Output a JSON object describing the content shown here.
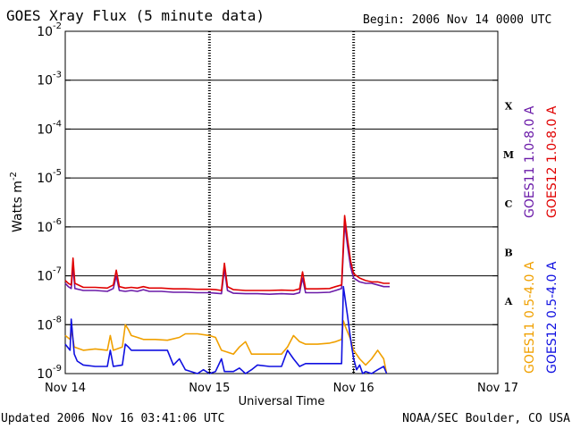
{
  "chart_data": {
    "type": "line",
    "title": "GOES Xray Flux (5 minute data)",
    "begin_label": "Begin:  2006 Nov 14 0000 UTC",
    "xlabel": "Universal Time",
    "ylabel": "Watts m",
    "ylabel_exp": "-2",
    "y_scale": "log",
    "ylim": [
      1e-09,
      0.01
    ],
    "xlim": [
      0,
      72
    ],
    "x_unit": "hours since 2006 Nov 14 00:00 UTC",
    "x_ticks": [
      {
        "x": 0,
        "label": "Nov 14"
      },
      {
        "x": 24,
        "label": "Nov 15"
      },
      {
        "x": 48,
        "label": "Nov 16"
      },
      {
        "x": 72,
        "label": "Nov 17"
      }
    ],
    "y_ticks": [
      {
        "exp": -9,
        "label": "10",
        "sup": "-9"
      },
      {
        "exp": -8,
        "label": "10",
        "sup": "-8"
      },
      {
        "exp": -7,
        "label": "10",
        "sup": "-7"
      },
      {
        "exp": -6,
        "label": "10",
        "sup": "-6"
      },
      {
        "exp": -5,
        "label": "10",
        "sup": "-5"
      },
      {
        "exp": -4,
        "label": "10",
        "sup": "-4"
      },
      {
        "exp": -3,
        "label": "10",
        "sup": "-3"
      },
      {
        "exp": -2,
        "label": "10",
        "sup": "-2"
      }
    ],
    "flare_classes": [
      {
        "label": "A",
        "y": 3e-08
      },
      {
        "label": "B",
        "y": 3e-07
      },
      {
        "label": "C",
        "y": 3e-06
      },
      {
        "label": "M",
        "y": 3e-05
      },
      {
        "label": "X",
        "y": 0.0003
      }
    ],
    "grid": true,
    "series": [
      {
        "name": "GOES11 1.0-8.0 A",
        "color": "#6a1aa8",
        "points": [
          [
            0,
            7e-08
          ],
          [
            0.5,
            6e-08
          ],
          [
            1,
            5.5e-08
          ],
          [
            1.3,
            1.6e-07
          ],
          [
            1.6,
            5.5e-08
          ],
          [
            3,
            5e-08
          ],
          [
            5,
            5e-08
          ],
          [
            7,
            4.8e-08
          ],
          [
            8,
            5.5e-08
          ],
          [
            8.5,
            1e-07
          ],
          [
            9,
            5e-08
          ],
          [
            10,
            4.8e-08
          ],
          [
            11,
            5e-08
          ],
          [
            12,
            4.8e-08
          ],
          [
            13,
            5.2e-08
          ],
          [
            14,
            4.8e-08
          ],
          [
            16,
            4.8e-08
          ],
          [
            18,
            4.6e-08
          ],
          [
            20,
            4.6e-08
          ],
          [
            22,
            4.5e-08
          ],
          [
            24,
            4.5e-08
          ],
          [
            25,
            4.4e-08
          ],
          [
            26,
            4.3e-08
          ],
          [
            26.5,
            1.4e-07
          ],
          [
            27,
            5e-08
          ],
          [
            28,
            4.4e-08
          ],
          [
            30,
            4.3e-08
          ],
          [
            32,
            4.3e-08
          ],
          [
            34,
            4.2e-08
          ],
          [
            36,
            4.3e-08
          ],
          [
            38,
            4.2e-08
          ],
          [
            39,
            4.5e-08
          ],
          [
            39.5,
            9e-08
          ],
          [
            40,
            4.5e-08
          ],
          [
            42,
            4.5e-08
          ],
          [
            44,
            4.6e-08
          ],
          [
            45,
            5e-08
          ],
          [
            46,
            5.5e-08
          ],
          [
            46.5,
            1.2e-06
          ],
          [
            47,
            4e-07
          ],
          [
            47.5,
            1.5e-07
          ],
          [
            48,
            9e-08
          ],
          [
            49,
            7.5e-08
          ],
          [
            50,
            7e-08
          ],
          [
            51,
            7e-08
          ],
          [
            52,
            6.5e-08
          ],
          [
            53,
            6e-08
          ],
          [
            54,
            6e-08
          ]
        ]
      },
      {
        "name": "GOES12 1.0-8.0 A",
        "color": "#e00000",
        "points": [
          [
            0,
            8e-08
          ],
          [
            0.5,
            7e-08
          ],
          [
            1,
            6.5e-08
          ],
          [
            1.3,
            2.3e-07
          ],
          [
            1.6,
            7e-08
          ],
          [
            3,
            5.8e-08
          ],
          [
            5,
            5.8e-08
          ],
          [
            7,
            5.6e-08
          ],
          [
            8,
            6.5e-08
          ],
          [
            8.5,
            1.3e-07
          ],
          [
            9,
            6e-08
          ],
          [
            10,
            5.6e-08
          ],
          [
            11,
            5.8e-08
          ],
          [
            12,
            5.6e-08
          ],
          [
            13,
            6e-08
          ],
          [
            14,
            5.6e-08
          ],
          [
            16,
            5.6e-08
          ],
          [
            18,
            5.4e-08
          ],
          [
            20,
            5.4e-08
          ],
          [
            22,
            5.3e-08
          ],
          [
            24,
            5.3e-08
          ],
          [
            25,
            5.2e-08
          ],
          [
            26,
            5e-08
          ],
          [
            26.5,
            1.8e-07
          ],
          [
            27,
            6e-08
          ],
          [
            28,
            5.2e-08
          ],
          [
            30,
            5e-08
          ],
          [
            32,
            5e-08
          ],
          [
            34,
            5e-08
          ],
          [
            36,
            5.1e-08
          ],
          [
            38,
            5e-08
          ],
          [
            39,
            5.4e-08
          ],
          [
            39.5,
            1.2e-07
          ],
          [
            40,
            5.4e-08
          ],
          [
            42,
            5.4e-08
          ],
          [
            44,
            5.5e-08
          ],
          [
            45,
            6e-08
          ],
          [
            46,
            6.5e-08
          ],
          [
            46.5,
            1.7e-06
          ],
          [
            47,
            5.5e-07
          ],
          [
            47.5,
            2e-07
          ],
          [
            48,
            1.1e-07
          ],
          [
            49,
            9e-08
          ],
          [
            50,
            8e-08
          ],
          [
            51,
            7.5e-08
          ],
          [
            52,
            7.5e-08
          ],
          [
            53,
            7e-08
          ],
          [
            54,
            7e-08
          ]
        ]
      },
      {
        "name": "GOES11 0.5-4.0 A",
        "color": "#f0a000",
        "points": [
          [
            0,
            6e-09
          ],
          [
            0.8,
            5e-09
          ],
          [
            1,
            8e-09
          ],
          [
            1.5,
            3.5e-09
          ],
          [
            3,
            3e-09
          ],
          [
            5,
            3.2e-09
          ],
          [
            7,
            3e-09
          ],
          [
            7.5,
            6e-09
          ],
          [
            8,
            3e-09
          ],
          [
            9.5,
            3.5e-09
          ],
          [
            10,
            1e-08
          ],
          [
            10.5,
            8e-09
          ],
          [
            11,
            6e-09
          ],
          [
            12,
            5.5e-09
          ],
          [
            13,
            5e-09
          ],
          [
            15,
            5e-09
          ],
          [
            17,
            4.8e-09
          ],
          [
            19,
            5.5e-09
          ],
          [
            20,
            6.5e-09
          ],
          [
            22,
            6.5e-09
          ],
          [
            24,
            6e-09
          ],
          [
            25,
            5.5e-09
          ],
          [
            26,
            3e-09
          ],
          [
            28,
            2.5e-09
          ],
          [
            29,
            3.5e-09
          ],
          [
            30,
            4.5e-09
          ],
          [
            31,
            2.5e-09
          ],
          [
            33,
            2.5e-09
          ],
          [
            36,
            2.5e-09
          ],
          [
            37,
            3.5e-09
          ],
          [
            38,
            6e-09
          ],
          [
            39,
            4.5e-09
          ],
          [
            40,
            4e-09
          ],
          [
            42,
            4e-09
          ],
          [
            44,
            4.2e-09
          ],
          [
            45,
            4.5e-09
          ],
          [
            46,
            5e-09
          ],
          [
            46.3,
            1.2e-08
          ],
          [
            46.5,
            1e-08
          ],
          [
            47.5,
            5e-09
          ],
          [
            48,
            3e-09
          ],
          [
            49,
            2e-09
          ],
          [
            50,
            1.5e-09
          ],
          [
            51,
            2e-09
          ],
          [
            52,
            3e-09
          ],
          [
            53,
            2e-09
          ],
          [
            53.5,
            1e-09
          ]
        ]
      },
      {
        "name": "GOES12 0.5-4.0 A",
        "color": "#1010e0",
        "points": [
          [
            0,
            4e-09
          ],
          [
            0.8,
            3e-09
          ],
          [
            1,
            1.3e-08
          ],
          [
            1.5,
            2.5e-09
          ],
          [
            2,
            1.8e-09
          ],
          [
            3,
            1.5e-09
          ],
          [
            5,
            1.4e-09
          ],
          [
            7,
            1.4e-09
          ],
          [
            7.5,
            3e-09
          ],
          [
            8,
            1.4e-09
          ],
          [
            9.5,
            1.5e-09
          ],
          [
            10,
            4e-09
          ],
          [
            10.5,
            3.5e-09
          ],
          [
            11,
            3e-09
          ],
          [
            13,
            3e-09
          ],
          [
            15,
            3e-09
          ],
          [
            17,
            3e-09
          ],
          [
            18,
            1.5e-09
          ],
          [
            19,
            2e-09
          ],
          [
            20,
            1.2e-09
          ],
          [
            22,
            1e-09
          ],
          [
            23,
            1.2e-09
          ],
          [
            24,
            1e-09
          ],
          [
            25,
            1.1e-09
          ],
          [
            26,
            2e-09
          ],
          [
            26.5,
            1.1e-09
          ],
          [
            28,
            1.1e-09
          ],
          [
            29,
            1.3e-09
          ],
          [
            30,
            1e-09
          ],
          [
            31,
            1.2e-09
          ],
          [
            32,
            1.5e-09
          ],
          [
            34,
            1.4e-09
          ],
          [
            36,
            1.4e-09
          ],
          [
            37,
            3e-09
          ],
          [
            38,
            2e-09
          ],
          [
            39,
            1.4e-09
          ],
          [
            40,
            1.6e-09
          ],
          [
            42,
            1.6e-09
          ],
          [
            44,
            1.6e-09
          ],
          [
            45,
            1.6e-09
          ],
          [
            46,
            1.6e-09
          ],
          [
            46.3,
            6e-08
          ],
          [
            46.5,
            4e-08
          ],
          [
            47,
            1.5e-08
          ],
          [
            47.5,
            5e-09
          ],
          [
            48,
            2e-09
          ],
          [
            48.5,
            1.2e-09
          ],
          [
            49,
            1.5e-09
          ],
          [
            49.5,
            1e-09
          ],
          [
            50,
            1.1e-09
          ],
          [
            51,
            1e-09
          ],
          [
            52,
            1.2e-09
          ],
          [
            53,
            1.4e-09
          ],
          [
            53.5,
            1e-09
          ]
        ]
      }
    ]
  },
  "footer": {
    "updated": "Updated 2006 Nov 16 03:41:06 UTC",
    "source": "NOAA/SEC Boulder, CO USA"
  }
}
